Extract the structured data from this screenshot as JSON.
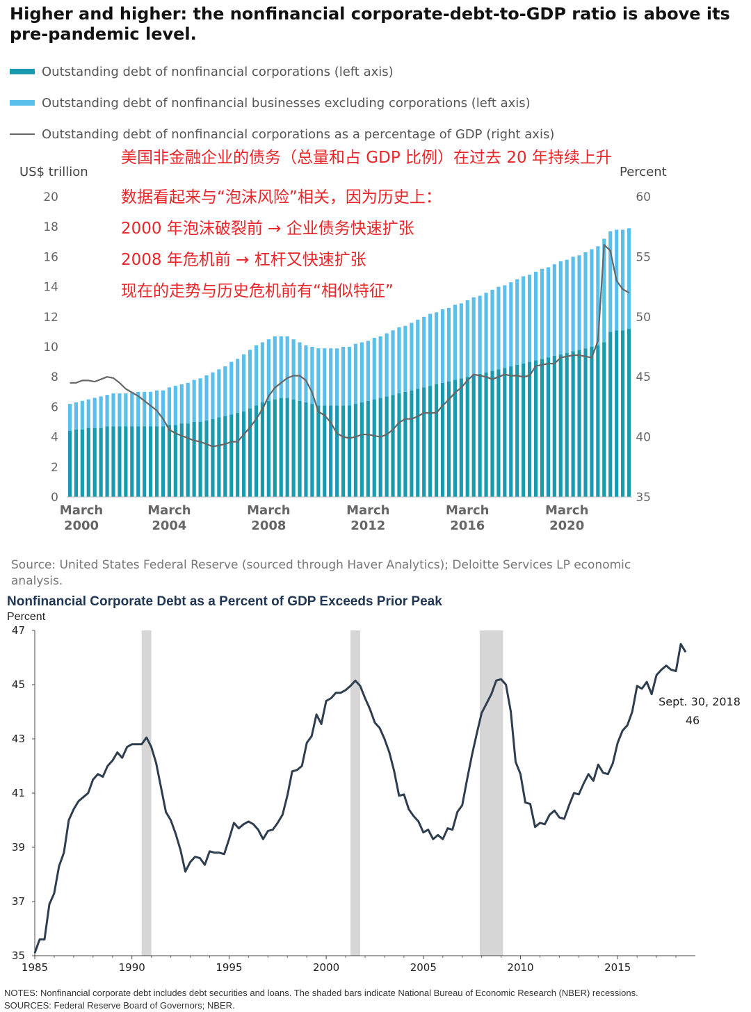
{
  "colors": {
    "teal": "#1a9aae",
    "lightblue": "#5cbfea",
    "ratio_line": "#666666",
    "annotation": "#e8262a",
    "chart2_line": "#2f3e4f",
    "recession": "#d6d6d6",
    "chart2_title": "#1e3553"
  },
  "top": {
    "title": "Higher and higher: the nonfinancial corporate-debt-to-GDP ratio is above its pre-pandemic level.",
    "legend": {
      "corp": "Outstanding debt of nonfinancial corporations (left axis)",
      "noncorp": "Outstanding debt of nonfinancial businesses excluding corporations (left axis)",
      "ratio": "Outstanding debt of nonfinancial corporations as a percentage of GDP (right axis)"
    },
    "left_unit": "US$ trillion",
    "right_unit": "Percent",
    "annotations": [
      "美国非金融企业的债务（总量和占 GDP 比例）在过去 20 年持续上升",
      "数据看起来与“泡沫风险”相关，因为历史上：",
      "2000 年泡沫破裂前 → 企业债务快速扩张",
      "2008 年危机前 → 杠杆又快速扩张",
      "现在的走势与历史危机前有“相似特征”"
    ],
    "source": "Source: United States Federal Reserve (sourced through Haver Analytics); Deloitte Services LP economic analysis."
  },
  "bottom": {
    "title": "Nonfinancial Corporate Debt as a Percent of GDP Exceeds Prior Peak",
    "unit": "Percent",
    "callout_date": "Sept. 30, 2018",
    "callout_value": "46",
    "notes": "NOTES: Nonfinancial corporate debt includes debt securities and loans. The shaded bars indicate National Bureau of Economic Research (NBER) recessions.",
    "sources": "SOURCES: Federal Reserve Board of Governors; NBER."
  },
  "chart_data": [
    {
      "type": "bar",
      "title": "Higher and higher: the nonfinancial corporate-debt-to-GDP ratio is above its pre-pandemic level.",
      "xlabel": "",
      "ylabel": "US$ trillion",
      "y2label": "Percent",
      "ylim": [
        0,
        20
      ],
      "y2lim": [
        35,
        60
      ],
      "yticks": [
        "0",
        "2",
        "4",
        "6",
        "8",
        "10",
        "12",
        "14",
        "16",
        "18",
        "20"
      ],
      "y2ticks": [
        "35",
        "40",
        "45",
        "50",
        "55",
        "60"
      ],
      "x_start": 2000.0,
      "x_step": 0.25,
      "x_tick_labels": [
        {
          "line1": "March",
          "line2": "2000",
          "x": 2000
        },
        {
          "line1": "March",
          "line2": "2004",
          "x": 2004
        },
        {
          "line1": "March",
          "line2": "2008",
          "x": 2008
        },
        {
          "line1": "March",
          "line2": "2012",
          "x": 2012
        },
        {
          "line1": "March",
          "line2": "2016",
          "x": 2016
        },
        {
          "line1": "March",
          "line2": "2020",
          "x": 2020
        }
      ],
      "stacked": true,
      "series": [
        {
          "name": "Outstanding debt of nonfinancial corporations (left axis)",
          "axis": "left",
          "color_key": "teal",
          "values": [
            4.4,
            4.5,
            4.5,
            4.6,
            4.6,
            4.6,
            4.7,
            4.7,
            4.7,
            4.7,
            4.7,
            4.7,
            4.7,
            4.7,
            4.7,
            4.7,
            4.8,
            4.8,
            4.9,
            4.9,
            5.0,
            5.0,
            5.1,
            5.2,
            5.3,
            5.4,
            5.5,
            5.6,
            5.7,
            5.9,
            6.1,
            6.3,
            6.4,
            6.5,
            6.6,
            6.6,
            6.5,
            6.4,
            6.3,
            6.2,
            6.1,
            6.1,
            6.1,
            6.1,
            6.1,
            6.1,
            6.2,
            6.3,
            6.4,
            6.5,
            6.6,
            6.7,
            6.8,
            6.9,
            7.0,
            7.1,
            7.2,
            7.3,
            7.4,
            7.5,
            7.6,
            7.7,
            7.8,
            7.9,
            8.0,
            8.1,
            8.2,
            8.3,
            8.4,
            8.5,
            8.6,
            8.7,
            8.8,
            8.9,
            9.0,
            9.1,
            9.2,
            9.3,
            9.4,
            9.5,
            9.6,
            9.7,
            9.8,
            9.9,
            10.0,
            10.1,
            10.3,
            11.0,
            11.1,
            11.1,
            11.2
          ]
        },
        {
          "name": "Outstanding debt of nonfinancial businesses excluding corporations (left axis)",
          "axis": "left",
          "color_key": "lightblue",
          "values": [
            1.8,
            1.8,
            1.9,
            1.9,
            2.0,
            2.1,
            2.1,
            2.2,
            2.2,
            2.2,
            2.3,
            2.3,
            2.3,
            2.3,
            2.4,
            2.4,
            2.5,
            2.6,
            2.6,
            2.7,
            2.8,
            2.9,
            3.0,
            3.1,
            3.2,
            3.3,
            3.5,
            3.6,
            3.8,
            3.9,
            4.0,
            4.0,
            4.1,
            4.2,
            4.1,
            4.1,
            4.0,
            3.9,
            3.8,
            3.8,
            3.8,
            3.8,
            3.8,
            3.8,
            3.9,
            3.9,
            4.0,
            4.0,
            4.0,
            4.1,
            4.1,
            4.2,
            4.3,
            4.4,
            4.4,
            4.5,
            4.6,
            4.7,
            4.8,
            4.8,
            4.9,
            4.9,
            5.0,
            5.0,
            5.1,
            5.2,
            5.2,
            5.3,
            5.4,
            5.5,
            5.5,
            5.6,
            5.7,
            5.8,
            5.8,
            5.9,
            6.0,
            6.0,
            6.1,
            6.2,
            6.2,
            6.3,
            6.3,
            6.4,
            6.5,
            6.6,
            6.9,
            6.7,
            6.7,
            6.7,
            6.7
          ]
        },
        {
          "name": "Outstanding debt of nonfinancial corporations as a percentage of GDP (right axis)",
          "axis": "right",
          "type": "line",
          "color_key": "ratio_line",
          "values": [
            44.5,
            44.5,
            44.7,
            44.7,
            44.6,
            44.8,
            45.0,
            44.9,
            44.5,
            44.0,
            43.7,
            43.4,
            43.0,
            42.6,
            42.2,
            41.5,
            40.6,
            40.3,
            40.1,
            39.9,
            39.7,
            39.6,
            39.4,
            39.2,
            39.3,
            39.4,
            39.6,
            39.6,
            40.2,
            40.8,
            41.5,
            42.3,
            43.4,
            44.1,
            44.5,
            44.9,
            45.1,
            45.1,
            44.7,
            43.7,
            42.1,
            41.8,
            41.2,
            40.3,
            40.0,
            39.9,
            40.0,
            40.2,
            40.2,
            40.1,
            40.0,
            40.2,
            40.6,
            41.2,
            41.5,
            41.5,
            41.7,
            42.0,
            42.0,
            42.0,
            42.6,
            43.1,
            43.7,
            44.1,
            44.7,
            45.2,
            45.1,
            45.0,
            44.8,
            45.0,
            45.2,
            45.1,
            45.1,
            45.0,
            45.1,
            45.9,
            46.0,
            46.1,
            46.1,
            46.6,
            46.7,
            46.8,
            46.8,
            46.7,
            46.6,
            48.0,
            56.0,
            55.5,
            53.0,
            52.3,
            52.0
          ]
        }
      ]
    },
    {
      "type": "line",
      "title": "Nonfinancial Corporate Debt as a Percent of GDP Exceeds Prior Peak",
      "xlabel": "",
      "ylabel": "Percent",
      "xlim": [
        1985,
        2019
      ],
      "ylim": [
        35,
        47
      ],
      "xticks": [
        1985,
        1990,
        1995,
        2000,
        2005,
        2010,
        2015
      ],
      "xtick_labels": [
        "1985",
        "1990",
        "1995",
        "2000",
        "2005",
        "2010",
        "2015"
      ],
      "yticks": [
        35,
        37,
        39,
        41,
        43,
        45,
        47
      ],
      "ytick_labels": [
        "35",
        "37",
        "39",
        "41",
        "43",
        "45",
        "47"
      ],
      "recessions": [
        [
          1990.5,
          1991.0
        ],
        [
          2001.25,
          2001.75
        ],
        [
          2007.9,
          2009.1
        ]
      ],
      "series": [
        {
          "name": "Nonfinancial corporate debt as a percent of GDP",
          "x": [
            1985.0,
            1985.25,
            1985.5,
            1985.75,
            1986.0,
            1986.25,
            1986.5,
            1986.75,
            1987.0,
            1987.25,
            1987.5,
            1987.75,
            1988.0,
            1988.25,
            1988.5,
            1988.75,
            1989.0,
            1989.25,
            1989.5,
            1989.75,
            1990.0,
            1990.25,
            1990.5,
            1990.75,
            1991.0,
            1991.25,
            1991.5,
            1991.75,
            1992.0,
            1992.25,
            1992.5,
            1992.75,
            1993.0,
            1993.25,
            1993.5,
            1993.75,
            1994.0,
            1994.25,
            1994.5,
            1994.75,
            1995.0,
            1995.25,
            1995.5,
            1995.75,
            1996.0,
            1996.25,
            1996.5,
            1996.75,
            1997.0,
            1997.25,
            1997.5,
            1997.75,
            1998.0,
            1998.25,
            1998.5,
            1998.75,
            1999.0,
            1999.25,
            1999.5,
            1999.75,
            2000.0,
            2000.25,
            2000.5,
            2000.75,
            2001.0,
            2001.25,
            2001.5,
            2001.75,
            2002.0,
            2002.25,
            2002.5,
            2002.75,
            2003.0,
            2003.25,
            2003.5,
            2003.75,
            2004.0,
            2004.25,
            2004.5,
            2004.75,
            2005.0,
            2005.25,
            2005.5,
            2005.75,
            2006.0,
            2006.25,
            2006.5,
            2006.75,
            2007.0,
            2007.25,
            2007.5,
            2007.75,
            2008.0,
            2008.25,
            2008.5,
            2008.75,
            2009.0,
            2009.25,
            2009.5,
            2009.75,
            2010.0,
            2010.25,
            2010.5,
            2010.75,
            2011.0,
            2011.25,
            2011.5,
            2011.75,
            2012.0,
            2012.25,
            2012.5,
            2012.75,
            2013.0,
            2013.25,
            2013.5,
            2013.75,
            2014.0,
            2014.25,
            2014.5,
            2014.75,
            2015.0,
            2015.25,
            2015.5,
            2015.75,
            2016.0,
            2016.25,
            2016.5,
            2016.75,
            2017.0,
            2017.25,
            2017.5,
            2017.75,
            2018.0,
            2018.25,
            2018.5
          ],
          "y": [
            35.1,
            35.6,
            35.6,
            36.9,
            37.3,
            38.3,
            38.8,
            40.0,
            40.4,
            40.7,
            40.85,
            41.0,
            41.5,
            41.7,
            41.6,
            42.0,
            42.2,
            42.5,
            42.3,
            42.7,
            42.8,
            42.8,
            42.8,
            43.05,
            42.7,
            42.1,
            41.2,
            40.3,
            40.0,
            39.5,
            38.9,
            38.1,
            38.45,
            38.65,
            38.6,
            38.35,
            38.85,
            38.8,
            38.8,
            38.75,
            39.3,
            39.9,
            39.7,
            39.85,
            39.95,
            39.85,
            39.65,
            39.3,
            39.6,
            39.65,
            39.9,
            40.2,
            40.9,
            41.8,
            41.85,
            42.0,
            42.85,
            43.1,
            43.9,
            43.55,
            44.4,
            44.5,
            44.7,
            44.7,
            44.8,
            44.95,
            45.15,
            44.95,
            44.5,
            44.1,
            43.6,
            43.4,
            43.0,
            42.5,
            41.8,
            40.9,
            40.95,
            40.4,
            40.15,
            39.95,
            39.55,
            39.65,
            39.3,
            39.45,
            39.3,
            39.7,
            39.65,
            40.3,
            40.55,
            41.5,
            42.4,
            43.2,
            43.95,
            44.3,
            44.65,
            45.15,
            45.2,
            45.0,
            44.0,
            42.15,
            41.7,
            40.65,
            40.6,
            39.75,
            39.9,
            39.85,
            40.2,
            40.35,
            40.1,
            40.05,
            40.55,
            41.0,
            40.95,
            41.35,
            41.7,
            41.45,
            42.05,
            41.75,
            41.7,
            42.1,
            42.85,
            43.3,
            43.5,
            44.0,
            44.95,
            44.85,
            45.1,
            44.65,
            45.35,
            45.55,
            45.7,
            45.55,
            45.5,
            46.5,
            46.2
          ]
        }
      ],
      "annotations": [
        "Sept. 30, 2018",
        "46"
      ]
    }
  ]
}
